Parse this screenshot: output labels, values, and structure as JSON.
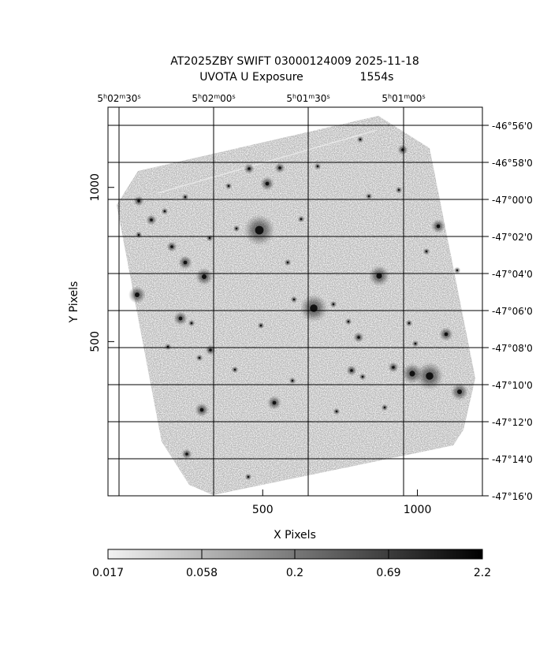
{
  "title": {
    "line1": "AT2025ZBY SWIFT 03000124009 2025-11-18",
    "line2_prefix": "UVOTA U Exposure",
    "line2_exposure": "1554s"
  },
  "axes": {
    "xlabel": "X Pixels",
    "ylabel": "Y Pixels",
    "x_ticks": [
      {
        "label": "500",
        "value": 500
      },
      {
        "label": "1000",
        "value": 1000
      }
    ],
    "y_ticks": [
      {
        "label": "500",
        "value": 500
      },
      {
        "label": "1000",
        "value": 1000
      }
    ],
    "xlim": [
      0,
      1210
    ],
    "ylim": [
      0,
      1260
    ]
  },
  "ra_ticks": [
    {
      "h": "5",
      "m": "02",
      "s": "30"
    },
    {
      "h": "5",
      "m": "02",
      "s": "00"
    },
    {
      "h": "5",
      "m": "01",
      "s": "30"
    },
    {
      "h": "5",
      "m": "01",
      "s": "00"
    }
  ],
  "dec_ticks": [
    "-46°56'0",
    "-46°58'0",
    "-47°00'0",
    "-47°02'0",
    "-47°04'0",
    "-47°06'0",
    "-47°08'0",
    "-47°10'0",
    "-47°12'0",
    "-47°14'0",
    "-47°16'0"
  ],
  "colorbar": {
    "labels": [
      "0.017",
      "0.058",
      "0.2",
      "0.69",
      "2.2"
    ],
    "low_color": "#f2f2f2",
    "high_color": "#000000"
  },
  "colors": {
    "field_gray": "#b4b4b4",
    "grid": "#000000"
  }
}
